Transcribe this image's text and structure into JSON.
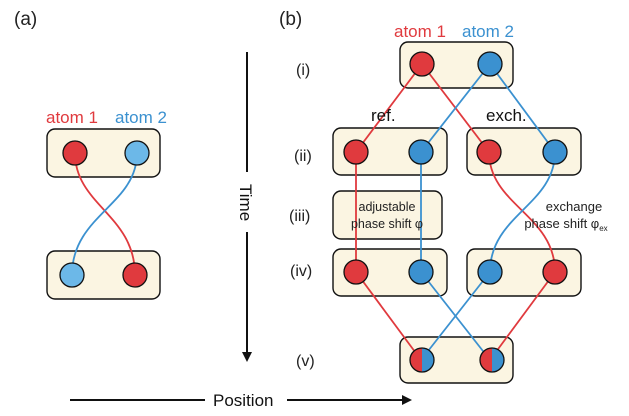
{
  "panels": {
    "a": "(a)",
    "b": "(b)"
  },
  "atoms": {
    "atom1": "atom 1",
    "atom2": "atom 2"
  },
  "stages": [
    "(i)",
    "(ii)",
    "(iii)",
    "(iv)",
    "(v)"
  ],
  "paths": {
    "ref": "ref.",
    "exch": "exch."
  },
  "notes": {
    "adjustable_line1": "adjustable",
    "adjustable_line2": "phase shift φ",
    "exchange_line1": "exchange",
    "exchange_line2": "phase shift φ",
    "exchange_subscript": "ex"
  },
  "axes": {
    "time": "Time",
    "position": "Position"
  },
  "colors": {
    "red": "#e03a3e",
    "blue": "#3b91d0",
    "light_blue": "#6cb8e8",
    "box_fill": "#fbf5e2"
  }
}
